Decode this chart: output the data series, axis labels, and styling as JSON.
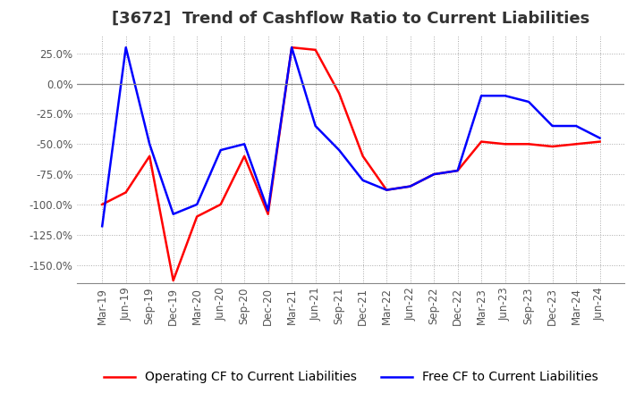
{
  "title": "[3672]  Trend of Cashflow Ratio to Current Liabilities",
  "x_labels": [
    "Mar-19",
    "Jun-19",
    "Sep-19",
    "Dec-19",
    "Mar-20",
    "Jun-20",
    "Sep-20",
    "Dec-20",
    "Mar-21",
    "Jun-21",
    "Sep-21",
    "Dec-21",
    "Mar-22",
    "Jun-22",
    "Sep-22",
    "Dec-22",
    "Mar-23",
    "Jun-23",
    "Sep-23",
    "Dec-23",
    "Mar-24",
    "Jun-24"
  ],
  "operating_cf": [
    -100,
    -90,
    -60,
    -163,
    -110,
    -100,
    -60,
    -108,
    30,
    28,
    -8,
    -60,
    -88,
    -85,
    -75,
    -72,
    -48,
    -50,
    -50,
    -52,
    -50,
    -48
  ],
  "free_cf": [
    -118,
    30,
    -50,
    -108,
    -100,
    -55,
    -50,
    -105,
    30,
    -35,
    -55,
    -80,
    -88,
    -85,
    -75,
    -72,
    -10,
    -10,
    -15,
    -35,
    -35,
    -45
  ],
  "operating_color": "#ff0000",
  "free_color": "#0000ff",
  "ylim": [
    -165,
    40
  ],
  "yticks": [
    25.0,
    0.0,
    -25.0,
    -50.0,
    -75.0,
    -100.0,
    -125.0,
    -150.0
  ],
  "title_fontsize": 13,
  "tick_fontsize": 8.5,
  "legend_fontsize": 10,
  "background_color": "#ffffff",
  "grid_color": "#aaaaaa",
  "grid_style": "dotted"
}
